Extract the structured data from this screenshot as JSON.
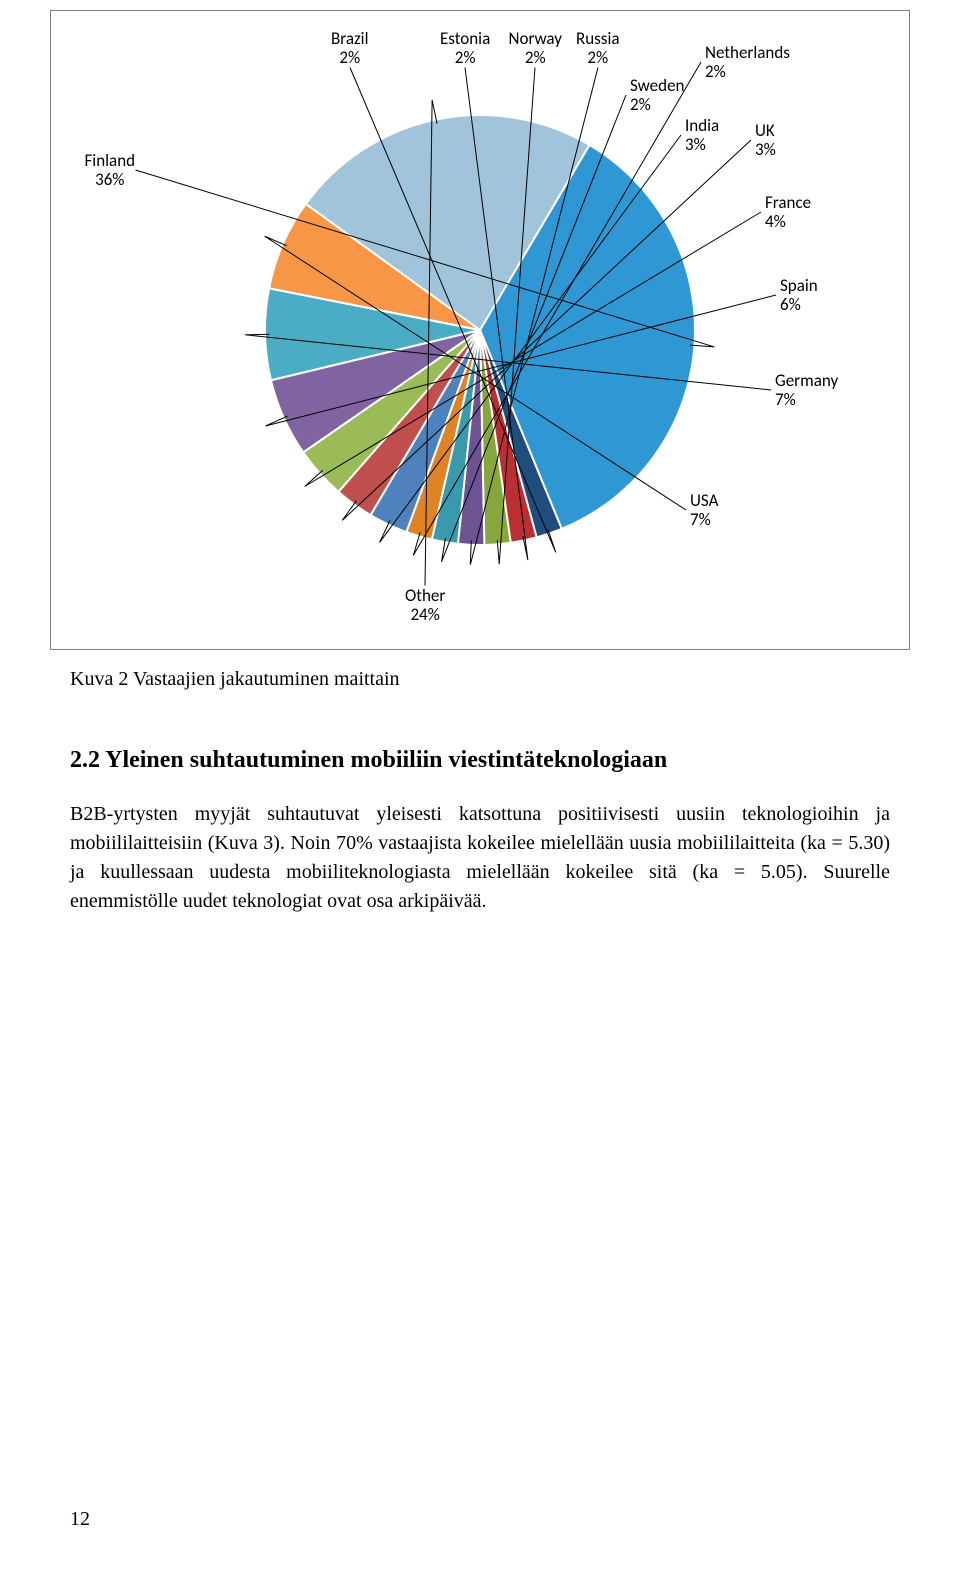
{
  "chart": {
    "type": "pie",
    "border_color": "#808080",
    "background_color": "#ffffff",
    "label_font": "Calibri",
    "label_fontsize": 17,
    "label_color": "#000000",
    "slices": [
      {
        "label": "Finland",
        "pct": 36,
        "color": "#2f98d4"
      },
      {
        "label": "Brazil",
        "pct": 2,
        "color": "#204d7e"
      },
      {
        "label": "Estonia",
        "pct": 2,
        "color": "#bb2f33"
      },
      {
        "label": "Norway",
        "pct": 2,
        "color": "#88a63e"
      },
      {
        "label": "Russia",
        "pct": 2,
        "color": "#6d5392"
      },
      {
        "label": "Sweden",
        "pct": 2,
        "color": "#3a9aad"
      },
      {
        "label": "Netherlands",
        "pct": 2,
        "color": "#df8426"
      },
      {
        "label": "India",
        "pct": 3,
        "color": "#4f81bd"
      },
      {
        "label": "UK",
        "pct": 3,
        "color": "#c0504d"
      },
      {
        "label": "France",
        "pct": 4,
        "color": "#9bbb59"
      },
      {
        "label": "Spain",
        "pct": 6,
        "color": "#8064a2"
      },
      {
        "label": "Germany",
        "pct": 7,
        "color": "#4bacc6"
      },
      {
        "label": "USA",
        "pct": 7,
        "color": "#f79646"
      },
      {
        "label": "Other",
        "pct": 24,
        "color": "#a2c4da"
      }
    ],
    "start_angle_deg": -59.4
  },
  "caption": "Kuva 2 Vastaajien jakautuminen maittain",
  "section_heading": "2.2 Yleinen suhtautuminen mobiiliin viestintäteknologiaan",
  "body_paragraph": "B2B-yrtysten myyjät suhtautuvat yleisesti katsottuna positiivisesti uusiin teknologioihin ja mobiililaitteisiin (Kuva 3). Noin 70% vastaajista kokeilee mielellään uusia mobiililaitteita (ka = 5.30) ja kuullessaan uudesta mobiiliteknologiasta mielellään kokeilee sitä (ka = 5.05). Suurelle enemmistölle uudet teknologiat ovat osa arkipäivää.",
  "page_number": "12"
}
